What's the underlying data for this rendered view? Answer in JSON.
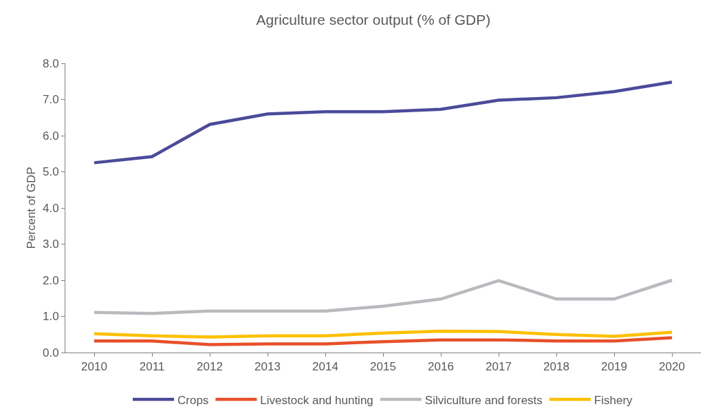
{
  "chart_data": {
    "type": "line",
    "title": "Agriculture sector output (% of GDP)",
    "ylabel": "Percent of GDP",
    "categories": [
      "2010",
      "2011",
      "2012",
      "2013",
      "2014",
      "2015",
      "2016",
      "2017",
      "2018",
      "2019",
      "2020"
    ],
    "series": [
      {
        "name": "Crops",
        "color": "#4b4b9b",
        "values": [
          5.25,
          5.42,
          6.31,
          6.6,
          6.66,
          6.66,
          6.73,
          6.98,
          7.05,
          7.22,
          7.48
        ]
      },
      {
        "name": "Livestock and hunting",
        "color": "#e8502a",
        "values": [
          0.32,
          0.32,
          0.22,
          0.24,
          0.24,
          0.3,
          0.35,
          0.35,
          0.32,
          0.32,
          0.41
        ]
      },
      {
        "name": "Silviculture and forests",
        "color": "#b8babe",
        "values": [
          1.11,
          1.08,
          1.15,
          1.15,
          1.15,
          1.28,
          1.48,
          1.99,
          1.48,
          1.48,
          2.0
        ]
      },
      {
        "name": "Fishery",
        "color": "#ffc000",
        "values": [
          0.52,
          0.46,
          0.43,
          0.46,
          0.46,
          0.54,
          0.59,
          0.58,
          0.5,
          0.45,
          0.56
        ]
      }
    ],
    "ylim": [
      0,
      8
    ],
    "yticks": [
      {
        "value": 0,
        "label": "0.0"
      },
      {
        "value": 1,
        "label": "1.0"
      },
      {
        "value": 2,
        "label": "2.0"
      },
      {
        "value": 3,
        "label": "3.0"
      },
      {
        "value": 4,
        "label": "4.0"
      },
      {
        "value": 5,
        "label": "5.0"
      },
      {
        "value": 6,
        "label": "6.0"
      },
      {
        "value": 7,
        "label": "7.0"
      },
      {
        "value": 8,
        "label": "8.0"
      }
    ],
    "grid": false,
    "legend": "bottom",
    "marker": "none",
    "line_style": "solid"
  }
}
